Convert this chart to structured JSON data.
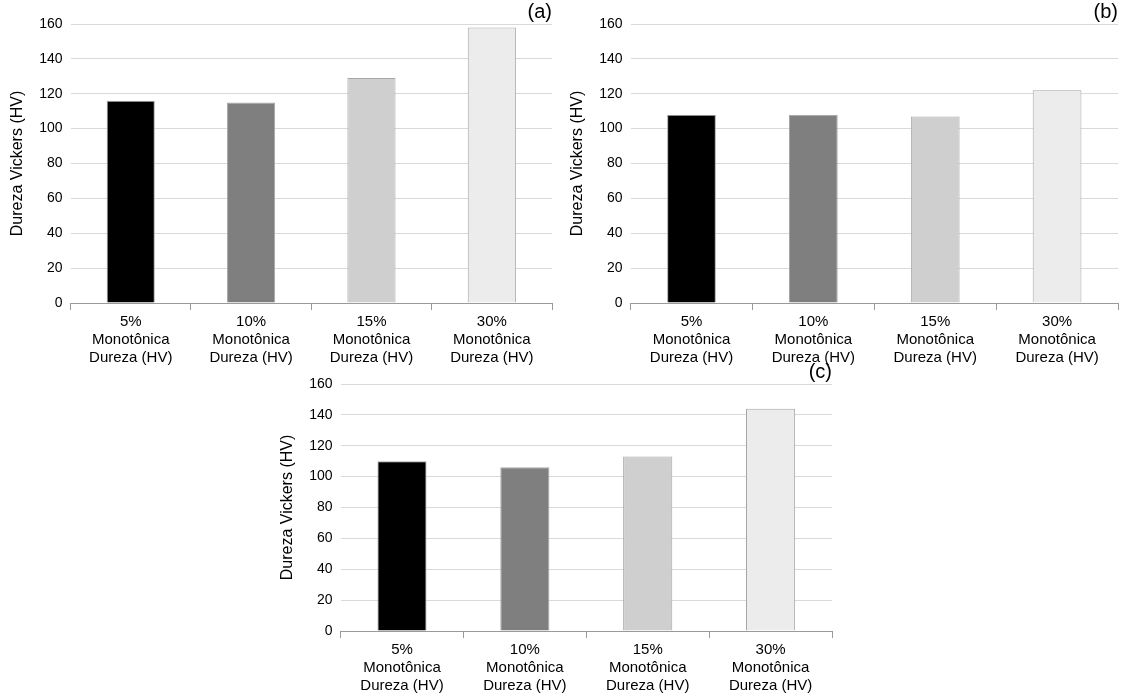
{
  "chart_data": [
    {
      "type": "bar",
      "title": "(a)",
      "ylabel": "Dureza Vickers (HV)",
      "categories": [
        "5%\nMonotônica\nDureza (HV)",
        "10%\nMonotônica\nDureza (HV)",
        "15%\nMonotônica\nDureza (HV)",
        "30%\nMonotônica\nDureza (HV)"
      ],
      "values": [
        116,
        115,
        129,
        158
      ],
      "colors": [
        "#000000",
        "#7f7f7f",
        "#d0cfd0",
        "#ececec"
      ],
      "ylim": [
        0,
        160
      ],
      "yticks": [
        0,
        20,
        40,
        60,
        80,
        100,
        120,
        140,
        160
      ],
      "grid": "y",
      "legend": false
    },
    {
      "type": "bar",
      "title": "(b)",
      "ylabel": "Dureza Vickers (HV)",
      "categories": [
        "5%\nMonotônica\nDureza (HV)",
        "10%\nMonotônica\nDureza (HV)",
        "15%\nMonotônica\nDureza (HV)",
        "30%\nMonotônica\nDureza (HV)"
      ],
      "values": [
        108,
        108,
        107,
        122
      ],
      "colors": [
        "#000000",
        "#7f7f7f",
        "#d0cfd0",
        "#ececec"
      ],
      "ylim": [
        0,
        160
      ],
      "yticks": [
        0,
        20,
        40,
        60,
        80,
        100,
        120,
        140,
        160
      ],
      "grid": "y",
      "legend": false
    },
    {
      "type": "bar",
      "title": "(c)",
      "ylabel": "Dureza Vickers (HV)",
      "categories": [
        "5%\nMonotônica\nDureza (HV)",
        "10%\nMonotônica\nDureza (HV)",
        "15%\nMonotônica\nDureza (HV)",
        "30%\nMonotônica\nDureza (HV)"
      ],
      "values": [
        110,
        106,
        113,
        144
      ],
      "colors": [
        "#000000",
        "#7f7f7f",
        "#d0cfd0",
        "#ececec"
      ],
      "ylim": [
        0,
        160
      ],
      "yticks": [
        0,
        20,
        40,
        60,
        80,
        100,
        120,
        140,
        160
      ],
      "grid": "y",
      "legend": false
    }
  ]
}
